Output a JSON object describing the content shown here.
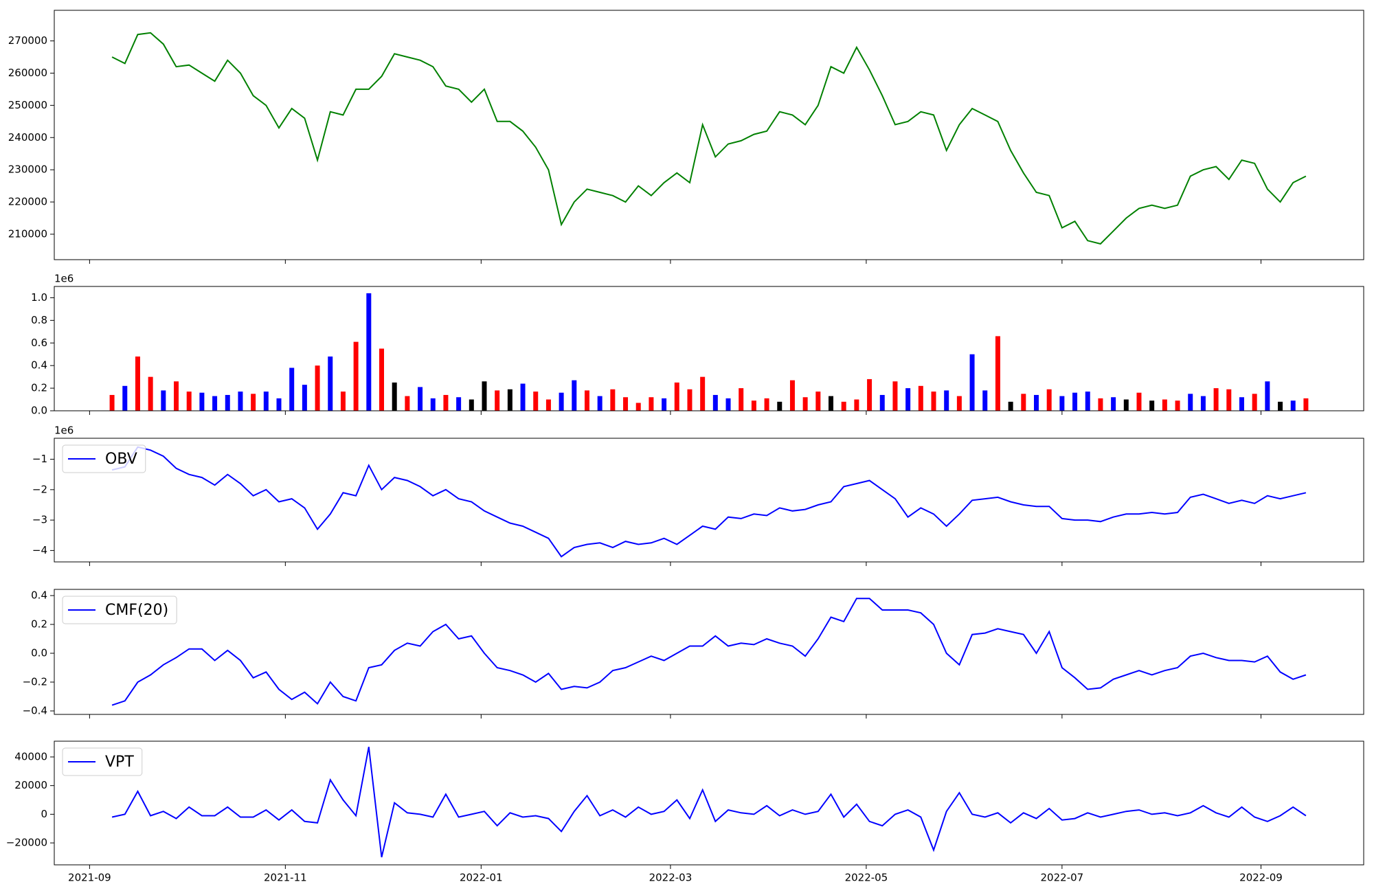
{
  "chart_data": [
    {
      "type": "line",
      "color": "green",
      "values": [
        265000,
        263000,
        272000,
        272500,
        269000,
        262000,
        262500,
        260000,
        257500,
        264000,
        260000,
        253000,
        250000,
        243000,
        249000,
        246000,
        233000,
        248000,
        247000,
        255000,
        255000,
        259000,
        266000,
        265000,
        264000,
        262000,
        256000,
        255000,
        251000,
        255000,
        245000,
        245000,
        242000,
        237000,
        230000,
        213000,
        220000,
        224000,
        223000,
        222000,
        220000,
        225000,
        222000,
        226000,
        229000,
        226000,
        244000,
        234000,
        238000,
        239000,
        241000,
        242000,
        248000,
        247000,
        244000,
        250000,
        262000,
        260000,
        268000,
        261000,
        253000,
        244000,
        245000,
        248000,
        247000,
        236000,
        244000,
        249000,
        247000,
        245000,
        236000,
        229000,
        223000,
        222000,
        212000,
        214000,
        208000,
        207000,
        211000,
        215000,
        218000,
        219000,
        218000,
        219000,
        228000,
        230000,
        231000,
        227000,
        233000,
        232000,
        224000,
        220000,
        226000,
        228000
      ],
      "ylim": [
        202100,
        279500
      ],
      "yticks": [
        210000,
        220000,
        230000,
        240000,
        250000,
        260000,
        270000
      ]
    },
    {
      "type": "bar",
      "offset_text": "1e6",
      "values": [
        140000,
        220000,
        480000,
        300000,
        180000,
        260000,
        170000,
        160000,
        130000,
        140000,
        170000,
        150000,
        170000,
        110000,
        380000,
        230000,
        400000,
        480000,
        170000,
        610000,
        1040000,
        550000,
        250000,
        130000,
        210000,
        110000,
        140000,
        120000,
        100000,
        260000,
        180000,
        190000,
        240000,
        170000,
        100000,
        160000,
        270000,
        180000,
        130000,
        190000,
        120000,
        70000,
        120000,
        110000,
        250000,
        190000,
        300000,
        140000,
        110000,
        200000,
        90000,
        110000,
        80000,
        270000,
        120000,
        170000,
        130000,
        80000,
        100000,
        280000,
        140000,
        260000,
        200000,
        220000,
        170000,
        180000,
        130000,
        500000,
        180000,
        660000,
        80000,
        150000,
        140000,
        190000,
        130000,
        160000,
        170000,
        110000,
        120000,
        100000,
        160000,
        90000,
        100000,
        90000,
        150000,
        130000,
        200000,
        190000,
        120000,
        150000,
        260000,
        80000,
        90000,
        110000
      ],
      "colors": [
        "red",
        "blue",
        "red",
        "red",
        "blue",
        "red",
        "red",
        "blue",
        "blue",
        "blue",
        "blue",
        "red",
        "blue",
        "blue",
        "blue",
        "blue",
        "red",
        "blue",
        "red",
        "red",
        "blue",
        "red",
        "black",
        "red",
        "blue",
        "blue",
        "red",
        "blue",
        "black",
        "black",
        "red",
        "black",
        "blue",
        "red",
        "red",
        "blue",
        "blue",
        "red",
        "blue",
        "red",
        "red",
        "red",
        "red",
        "blue",
        "red",
        "red",
        "red",
        "blue",
        "blue",
        "red",
        "red",
        "red",
        "black",
        "red",
        "red",
        "red",
        "black",
        "red",
        "red",
        "red",
        "blue",
        "red",
        "blue",
        "red",
        "red",
        "blue",
        "red",
        "blue",
        "blue",
        "red",
        "black",
        "red",
        "blue",
        "red",
        "blue",
        "blue",
        "blue",
        "red",
        "blue",
        "black",
        "red",
        "black",
        "red",
        "red",
        "blue",
        "blue",
        "red",
        "red",
        "blue",
        "red",
        "blue",
        "black",
        "blue",
        "red"
      ],
      "ylim": [
        0,
        1100000
      ],
      "yticks": [
        {
          "value": 0,
          "label": "0.0"
        },
        {
          "value": 200000,
          "label": "0.2"
        },
        {
          "value": 400000,
          "label": "0.4"
        },
        {
          "value": 600000,
          "label": "0.6"
        },
        {
          "value": 800000,
          "label": "0.8"
        },
        {
          "value": 1000000,
          "label": "1.0"
        }
      ]
    },
    {
      "type": "line",
      "offset_text": "1e6",
      "legend": "upper left",
      "series": [
        {
          "name": "OBV",
          "color": "blue",
          "values": [
            -1350000,
            -1250000,
            -600000,
            -700000,
            -900000,
            -1300000,
            -1500000,
            -1600000,
            -1850000,
            -1500000,
            -1800000,
            -2200000,
            -2000000,
            -2400000,
            -2300000,
            -2600000,
            -3300000,
            -2800000,
            -2100000,
            -2200000,
            -1200000,
            -2000000,
            -1600000,
            -1700000,
            -1900000,
            -2200000,
            -2000000,
            -2300000,
            -2400000,
            -2700000,
            -2900000,
            -3100000,
            -3200000,
            -3400000,
            -3600000,
            -4200000,
            -3900000,
            -3800000,
            -3750000,
            -3900000,
            -3700000,
            -3800000,
            -3750000,
            -3600000,
            -3800000,
            -3500000,
            -3200000,
            -3300000,
            -2900000,
            -2950000,
            -2800000,
            -2850000,
            -2600000,
            -2700000,
            -2650000,
            -2500000,
            -2400000,
            -1900000,
            -1800000,
            -1700000,
            -2000000,
            -2300000,
            -2900000,
            -2600000,
            -2800000,
            -3200000,
            -2800000,
            -2350000,
            -2300000,
            -2250000,
            -2400000,
            -2500000,
            -2550000,
            -2550000,
            -2950000,
            -3000000,
            -3000000,
            -3050000,
            -2900000,
            -2800000,
            -2800000,
            -2750000,
            -2800000,
            -2750000,
            -2250000,
            -2150000,
            -2300000,
            -2450000,
            -2350000,
            -2450000,
            -2200000,
            -2300000,
            -2200000,
            -2100000
          ]
        }
      ],
      "ylim": [
        -4375000,
        -310000
      ],
      "yticks": [
        {
          "value": -4000000,
          "label": "−4"
        },
        {
          "value": -3000000,
          "label": "−3"
        },
        {
          "value": -2000000,
          "label": "−2"
        },
        {
          "value": -1000000,
          "label": "−1"
        }
      ]
    },
    {
      "type": "line",
      "legend": "upper left",
      "series": [
        {
          "name": "CMF(20)",
          "color": "blue",
          "values": [
            -0.36,
            -0.33,
            -0.2,
            -0.15,
            -0.08,
            -0.03,
            0.03,
            0.03,
            -0.05,
            0.02,
            -0.05,
            -0.17,
            -0.13,
            -0.25,
            -0.32,
            -0.27,
            -0.35,
            -0.2,
            -0.3,
            -0.33,
            -0.1,
            -0.08,
            0.02,
            0.07,
            0.05,
            0.15,
            0.2,
            0.1,
            0.12,
            0.0,
            -0.1,
            -0.12,
            -0.15,
            -0.2,
            -0.14,
            -0.25,
            -0.23,
            -0.24,
            -0.2,
            -0.12,
            -0.1,
            -0.06,
            -0.02,
            -0.05,
            0.0,
            0.05,
            0.05,
            0.12,
            0.05,
            0.07,
            0.06,
            0.1,
            0.07,
            0.05,
            -0.02,
            0.1,
            0.25,
            0.22,
            0.38,
            0.38,
            0.3,
            0.3,
            0.3,
            0.28,
            0.2,
            0.0,
            -0.08,
            0.13,
            0.14,
            0.17,
            0.15,
            0.13,
            0.0,
            0.15,
            -0.1,
            -0.17,
            -0.25,
            -0.24,
            -0.18,
            -0.15,
            -0.12,
            -0.15,
            -0.12,
            -0.1,
            -0.02,
            0.0,
            -0.03,
            -0.05,
            -0.05,
            -0.06,
            -0.02,
            -0.13,
            -0.18,
            -0.15
          ]
        }
      ],
      "ylim": [
        -0.424,
        0.443
      ],
      "yticks": [
        {
          "value": -0.4,
          "label": "−0.4"
        },
        {
          "value": -0.2,
          "label": "−0.2"
        },
        {
          "value": 0,
          "label": "0.0"
        },
        0.2,
        0.4
      ]
    },
    {
      "type": "line",
      "legend": "upper left",
      "series": [
        {
          "name": "VPT",
          "color": "blue",
          "values": [
            -2000,
            0,
            16000,
            -1000,
            2000,
            -3000,
            5000,
            -1000,
            -1000,
            5000,
            -2000,
            -2000,
            3000,
            -4000,
            3000,
            -5000,
            -6000,
            24000,
            10000,
            -1000,
            47000,
            -30000,
            8000,
            1000,
            0,
            -2000,
            14000,
            -2000,
            0,
            2000,
            -8000,
            1000,
            -2000,
            -1000,
            -3000,
            -12000,
            2000,
            13000,
            -1000,
            3000,
            -2000,
            5000,
            0,
            2000,
            10000,
            -3000,
            17000,
            -5000,
            3000,
            1000,
            0,
            6000,
            -1000,
            3000,
            0,
            2000,
            14000,
            -2000,
            7000,
            -5000,
            -8000,
            0,
            3000,
            -2000,
            -25000,
            2000,
            15000,
            0,
            -2000,
            1000,
            -6000,
            1000,
            -3000,
            4000,
            -4000,
            -3000,
            1000,
            -2000,
            0,
            2000,
            3000,
            0,
            1000,
            -1000,
            1000,
            6000,
            1000,
            -2000,
            5000,
            -2000,
            -5000,
            -1000,
            5000,
            -1000
          ]
        }
      ],
      "ylim": [
        -35300,
        51000
      ],
      "yticks": [
        {
          "value": -20000,
          "label": "−20000"
        },
        0,
        20000,
        40000
      ],
      "x": [
        "2021-09-08",
        "2021-09-12",
        "2021-09-16",
        "2021-09-20",
        "2021-09-24",
        "2021-09-28",
        "2021-10-02",
        "2021-10-06",
        "2021-10-10",
        "2021-10-14",
        "2021-10-18",
        "2021-10-22",
        "2021-10-26",
        "2021-10-30",
        "2021-11-03",
        "2021-11-07",
        "2021-11-11",
        "2021-11-15",
        "2021-11-19",
        "2021-11-23",
        "2021-11-27",
        "2021-12-01",
        "2021-12-05",
        "2021-12-09",
        "2021-12-13",
        "2021-12-17",
        "2021-12-21",
        "2021-12-25",
        "2021-12-29",
        "2022-01-02",
        "2022-01-06",
        "2022-01-10",
        "2022-01-14",
        "2022-01-18",
        "2022-01-22",
        "2022-01-26",
        "2022-01-30",
        "2022-02-03",
        "2022-02-07",
        "2022-02-11",
        "2022-02-15",
        "2022-02-19",
        "2022-02-23",
        "2022-02-27",
        "2022-03-03",
        "2022-03-07",
        "2022-03-11",
        "2022-03-15",
        "2022-03-19",
        "2022-03-23",
        "2022-03-27",
        "2022-03-31",
        "2022-04-04",
        "2022-04-08",
        "2022-04-12",
        "2022-04-16",
        "2022-04-20",
        "2022-04-24",
        "2022-04-28",
        "2022-05-02",
        "2022-05-06",
        "2022-05-10",
        "2022-05-14",
        "2022-05-18",
        "2022-05-22",
        "2022-05-26",
        "2022-05-30",
        "2022-06-03",
        "2022-06-07",
        "2022-06-11",
        "2022-06-15",
        "2022-06-19",
        "2022-06-23",
        "2022-06-27",
        "2022-07-01",
        "2022-07-05",
        "2022-07-09",
        "2022-07-13",
        "2022-07-17",
        "2022-07-21",
        "2022-07-25",
        "2022-07-29",
        "2022-08-02",
        "2022-08-06",
        "2022-08-10",
        "2022-08-14",
        "2022-08-18",
        "2022-08-22",
        "2022-08-26",
        "2022-08-30",
        "2022-09-03",
        "2022-09-07",
        "2022-09-11",
        "2022-09-15"
      ],
      "xlim": [
        "2021-08-21",
        "2022-10-03"
      ],
      "xticks": [
        {
          "value": "2021-09",
          "label": "2021-09"
        },
        {
          "value": "2021-11",
          "label": "2021-11"
        },
        {
          "value": "2022-01",
          "label": "2022-01"
        },
        {
          "value": "2022-03",
          "label": "2022-03"
        },
        {
          "value": "2022-05",
          "label": "2022-05"
        },
        {
          "value": "2022-07",
          "label": "2022-07"
        },
        {
          "value": "2022-09",
          "label": "2022-09"
        }
      ]
    }
  ]
}
